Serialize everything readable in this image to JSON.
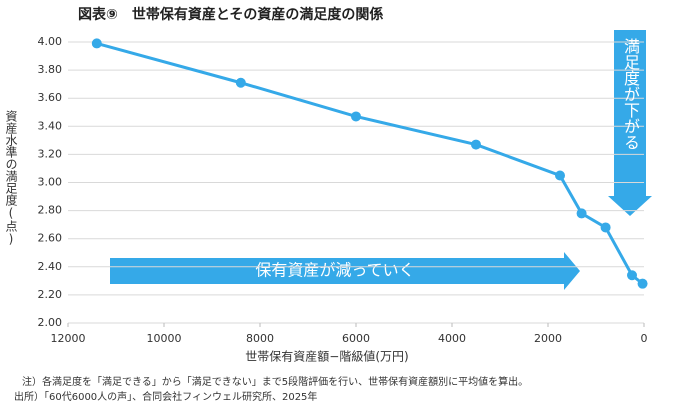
{
  "chart_data": {
    "type": "line",
    "title": "図表⑨　世帯保有資産とその資産の満足度の関係",
    "xlabel": "世帯保有資産額−階級値(万円)",
    "ylabel": "資産水準の満足度(点)",
    "x": [
      11400,
      8400,
      6000,
      3500,
      1750,
      1300,
      800,
      250,
      30
    ],
    "values": [
      3.99,
      3.71,
      3.47,
      3.27,
      3.05,
      2.78,
      2.68,
      2.34,
      2.28
    ],
    "color": "#35a9e8",
    "xlim": [
      12000,
      0
    ],
    "xticks": [
      12000,
      10000,
      8000,
      6000,
      4000,
      2000,
      0
    ],
    "ylim": [
      2,
      4
    ],
    "yticks": [
      {
        "value": 2,
        "label": "2.00"
      },
      {
        "value": 2.2,
        "label": "2.20"
      },
      {
        "value": 2.4,
        "label": "2.40"
      },
      {
        "value": 2.6,
        "label": "2.60"
      },
      {
        "value": 2.8,
        "label": "2.80"
      },
      {
        "value": 3,
        "label": "3.00"
      },
      {
        "value": 3.2,
        "label": "3.20"
      },
      {
        "value": 3.4,
        "label": "3.40"
      },
      {
        "value": 3.6,
        "label": "3.60"
      },
      {
        "value": 3.8,
        "label": "3.80"
      },
      {
        "value": 4,
        "label": "4.00"
      }
    ],
    "grid": true,
    "annotations": [
      "保有資産が減っていく",
      "満足度が下がる"
    ],
    "notes": [
      "注）各満足度を「満足できる」から「満足できない」まで5段階評価を行い、世帯保有資産額別に平均値を算出。",
      "出所）「60代6000人の声」、合同会社フィンウェル研究所、2025年"
    ]
  }
}
